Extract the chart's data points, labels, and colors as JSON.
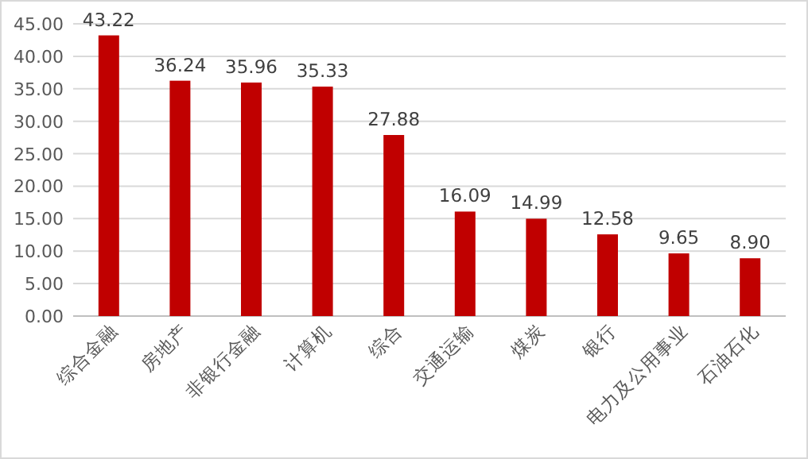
{
  "chart_data": {
    "type": "bar",
    "categories": [
      "综合金融",
      "房地产",
      "非银行金融",
      "计算机",
      "综合",
      "交通运输",
      "煤炭",
      "银行",
      "电力及公用事业",
      "石油石化"
    ],
    "values": [
      43.22,
      36.24,
      35.96,
      35.33,
      27.88,
      16.09,
      14.99,
      12.58,
      9.65,
      8.9
    ],
    "value_labels": [
      "43.22",
      "36.24",
      "35.96",
      "35.33",
      "27.88",
      "16.09",
      "14.99",
      "12.58",
      "9.65",
      "8.90"
    ],
    "color": "#c00000",
    "ylim": [
      0,
      45
    ],
    "yticks": [
      {
        "value": 0,
        "label": "0.00"
      },
      {
        "value": 5,
        "label": "5.00"
      },
      {
        "value": 10,
        "label": "10.00"
      },
      {
        "value": 15,
        "label": "15.00"
      },
      {
        "value": 20,
        "label": "20.00"
      },
      {
        "value": 25,
        "label": "25.00"
      },
      {
        "value": 30,
        "label": "30.00"
      },
      {
        "value": 35,
        "label": "35.00"
      },
      {
        "value": 40,
        "label": "40.00"
      },
      {
        "value": 45,
        "label": "45.00"
      }
    ],
    "grid": "y"
  }
}
